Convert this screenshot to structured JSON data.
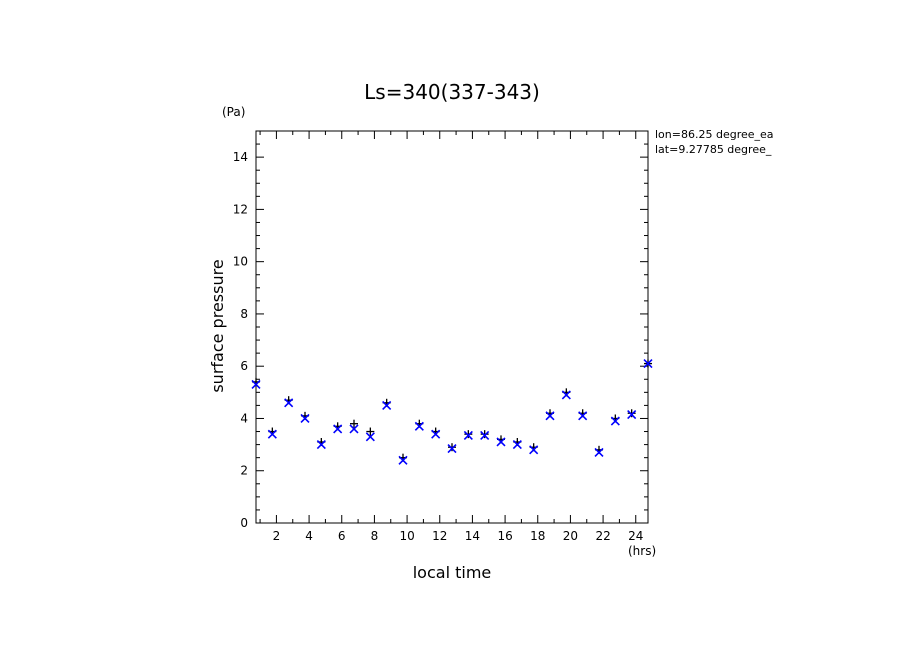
{
  "chart_data": {
    "type": "scatter",
    "title": "Ls=340(337-343)",
    "xlabel": "local time",
    "ylabel": "surface pressure",
    "x_unit": "(hrs)",
    "y_unit": "(Pa)",
    "xlim": [
      0.75,
      24.75
    ],
    "ylim": [
      0,
      15
    ],
    "x_major_ticks": [
      2,
      4,
      6,
      8,
      10,
      12,
      14,
      16,
      18,
      20,
      22,
      24
    ],
    "x_tick_labels": [
      "2",
      "4",
      "6",
      "8",
      "10",
      "12",
      "14",
      "16",
      "18",
      "20",
      "22",
      "24"
    ],
    "y_major_ticks": [
      0,
      2,
      4,
      6,
      8,
      10,
      12,
      14
    ],
    "y_tick_labels": [
      "0",
      "2",
      "4",
      "6",
      "8",
      "10",
      "12",
      "14"
    ],
    "grid": false,
    "annotations": [
      "lon=86.25 degree_ea",
      "lat=9.27785 degree_"
    ],
    "x": [
      0.75,
      1.75,
      2.75,
      3.75,
      4.75,
      5.75,
      6.75,
      7.75,
      8.75,
      9.75,
      10.75,
      11.75,
      12.75,
      13.75,
      14.75,
      15.75,
      16.75,
      17.75,
      18.75,
      19.75,
      20.75,
      21.75,
      22.75,
      23.75,
      24.75
    ],
    "series": [
      {
        "name": "plus",
        "marker": "+",
        "color": "#000000",
        "values": [
          5.4,
          3.5,
          4.7,
          4.1,
          3.1,
          3.7,
          3.8,
          3.5,
          4.6,
          2.5,
          3.8,
          3.5,
          2.9,
          3.4,
          3.4,
          3.2,
          3.1,
          2.9,
          4.2,
          5.0,
          4.2,
          2.8,
          4.0,
          4.2,
          6.1
        ]
      },
      {
        "name": "cross",
        "marker": "x",
        "color": "#0000ff",
        "values": [
          5.3,
          3.4,
          4.6,
          4.0,
          3.0,
          3.6,
          3.6,
          3.3,
          4.5,
          2.4,
          3.7,
          3.4,
          2.85,
          3.35,
          3.35,
          3.1,
          3.0,
          2.8,
          4.1,
          4.9,
          4.1,
          2.7,
          3.9,
          4.15,
          6.1
        ]
      }
    ]
  }
}
